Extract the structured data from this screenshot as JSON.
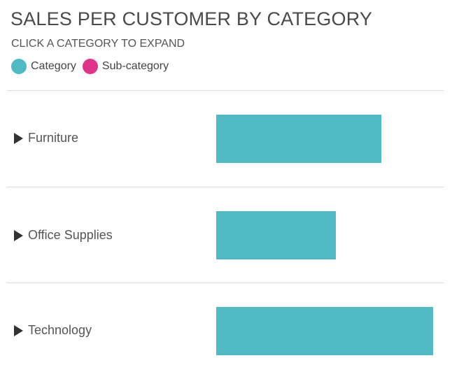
{
  "header": {
    "title": "SALES PER CUSTOMER BY CATEGORY",
    "subtitle": "CLICK A CATEGORY TO EXPAND"
  },
  "legend": [
    {
      "label": "Category",
      "color": "#4fb9c4"
    },
    {
      "label": "Sub-category",
      "color": "#e0338a"
    }
  ],
  "icons": {
    "expand": "triangle-right-icon"
  },
  "chart_data": {
    "type": "bar",
    "orientation": "horizontal",
    "title": "SALES PER CUSTOMER BY CATEGORY",
    "subtitle": "CLICK A CATEGORY TO EXPAND",
    "categories": [
      "Furniture",
      "Office Supplies",
      "Technology"
    ],
    "values": [
      0.76,
      0.55,
      1.0
    ],
    "value_note": "relative",
    "color": "#4fb9c4",
    "legend": [
      "Category",
      "Sub-category"
    ],
    "legend_position": "top-left",
    "grid": false
  }
}
